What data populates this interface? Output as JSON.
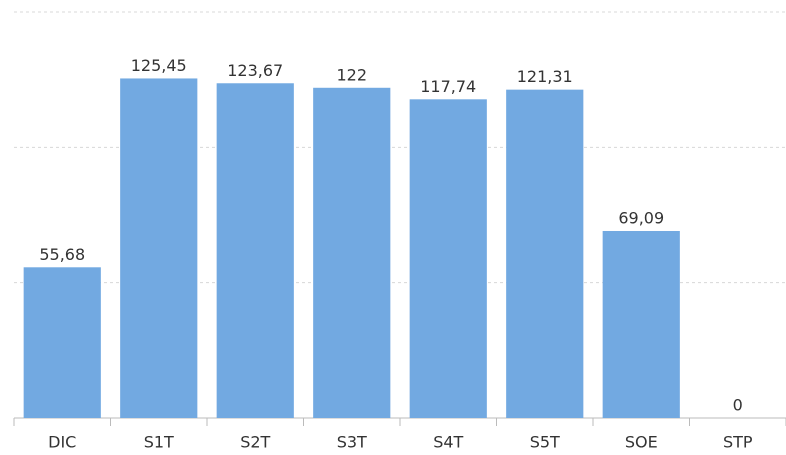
{
  "chart_data": {
    "type": "bar",
    "categories": [
      "DIC",
      "S1T",
      "S2T",
      "S3T",
      "S4T",
      "S5T",
      "SOE",
      "STP"
    ],
    "values": [
      55.68,
      125.45,
      123.67,
      122,
      117.74,
      121.31,
      69.09,
      0
    ],
    "value_labels": [
      "55,68",
      "125,45",
      "123,67",
      "122",
      "117,74",
      "121,31",
      "69,09",
      "0"
    ],
    "color": "#72a9e1",
    "ylim": [
      0,
      150
    ],
    "yticks": [
      0,
      50,
      100,
      150
    ],
    "grid": true
  }
}
